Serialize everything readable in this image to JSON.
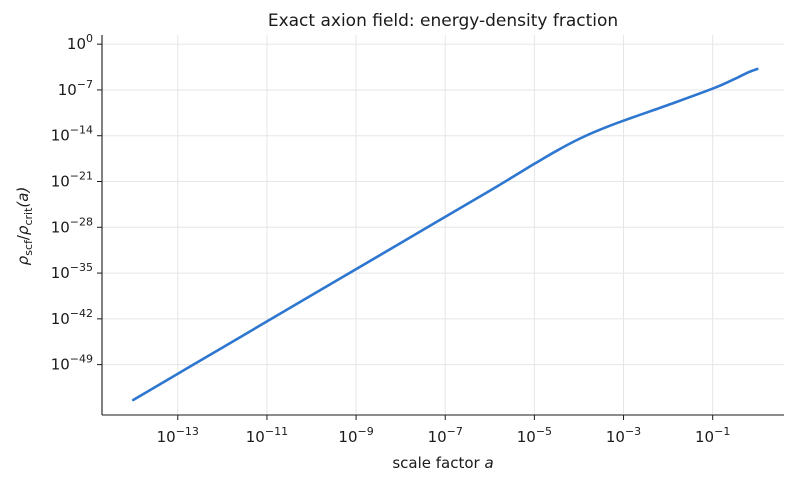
{
  "chart_data": {
    "type": "line",
    "title": "Exact axion field: energy-density fraction",
    "xlabel_prefix": "scale factor ",
    "xlabel_var": "a",
    "ylabel": "ρscf/ρcrit(a)",
    "ylabel_parts": {
      "rho1": "ρ",
      "sub1": "scf",
      "slash": "/",
      "rho2": "ρ",
      "sub2": "crit",
      "tail": "(a)"
    },
    "x_scale": "log",
    "y_scale": "log",
    "x_tick_exponents": [
      -13,
      -11,
      -9,
      -7,
      -5,
      -3,
      -1
    ],
    "y_tick_exponents": [
      0,
      -7,
      -14,
      -21,
      -28,
      -35,
      -42,
      -49
    ],
    "x_tick_base": "10",
    "y_tick_base": "10",
    "xlim_log10": [
      -14.7,
      0.6
    ],
    "ylim_log10": [
      -56.7,
      1.4
    ],
    "grid": true,
    "legend": "none",
    "color": "#2e77d0",
    "series": [
      {
        "log10_x": [
          -14,
          -12,
          -10,
          -8,
          -6,
          -5,
          -4.5,
          -4,
          -3.5,
          -3,
          -2,
          -1,
          -0.5,
          -0.2,
          0
        ],
        "log10_y": [
          -54.4,
          -46.4,
          -38.4,
          -30.4,
          -22.4,
          -18.3,
          -16.3,
          -14.5,
          -13.0,
          -11.7,
          -9.3,
          -6.8,
          -5.3,
          -4.3,
          -3.8
        ]
      }
    ]
  }
}
